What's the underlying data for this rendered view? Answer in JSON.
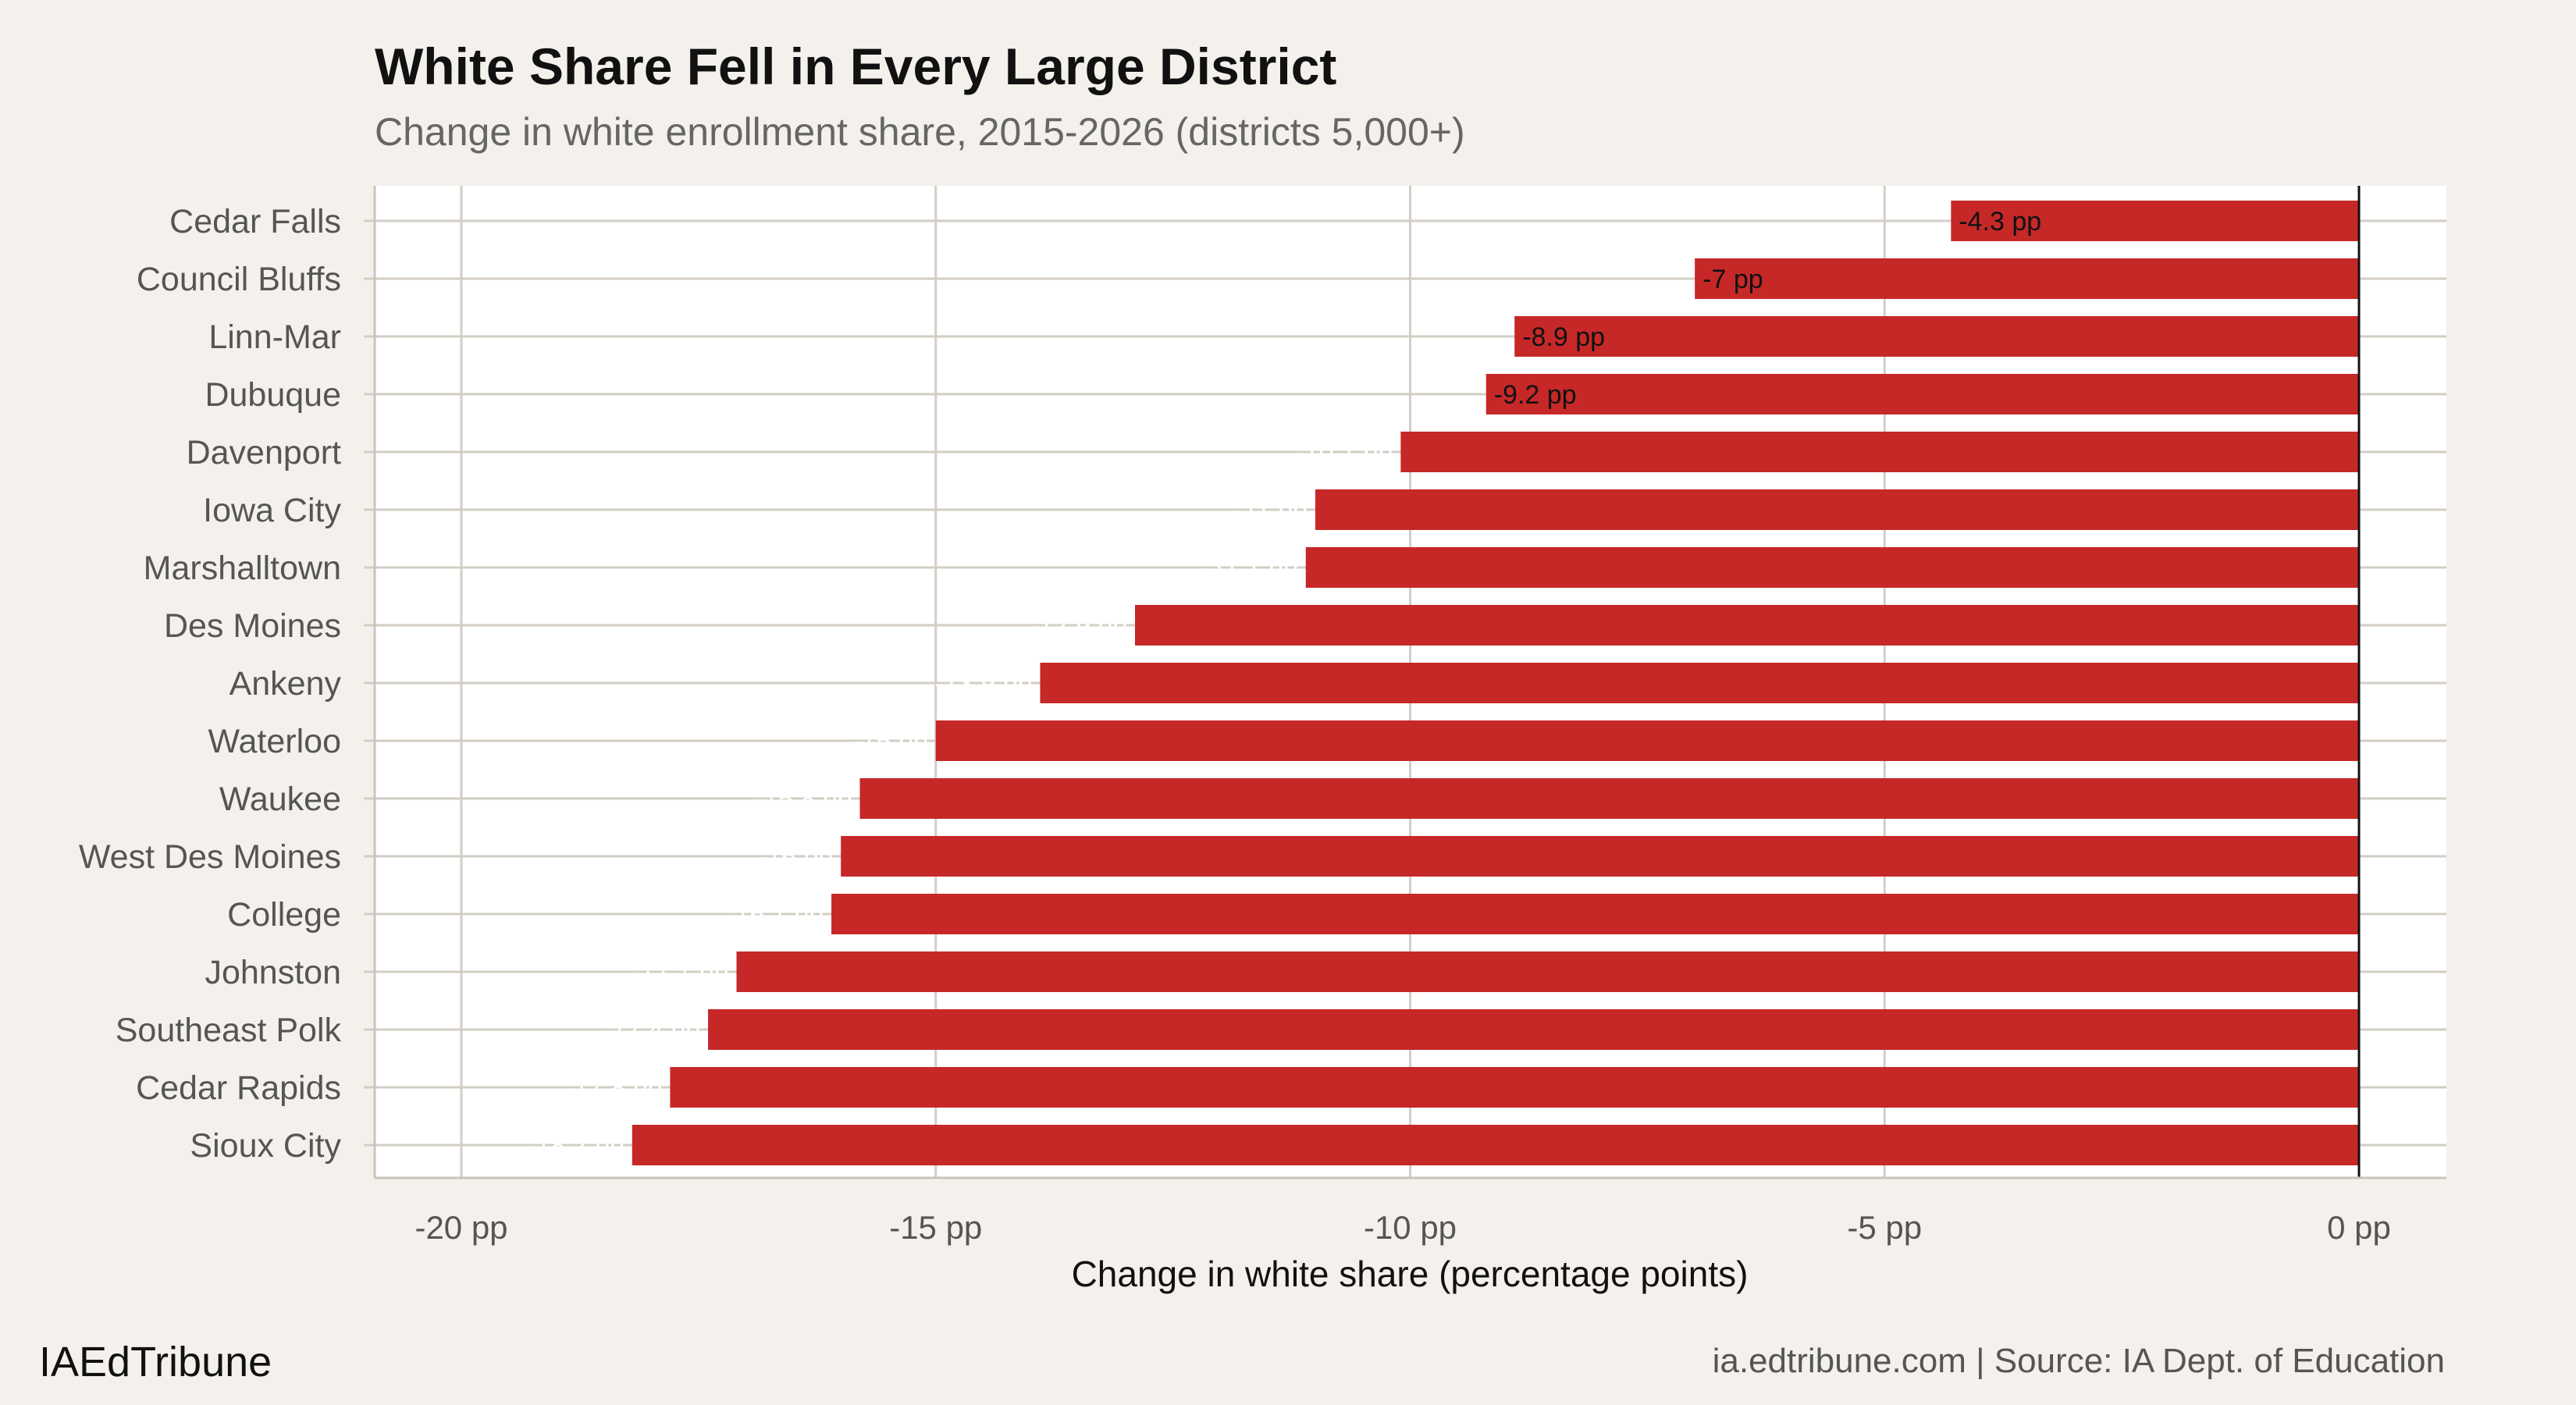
{
  "chart_data": {
    "type": "bar",
    "orientation": "horizontal",
    "title": "White Share Fell in Every Large District",
    "subtitle": "Change in white enrollment share, 2015-2026 (districts 5,000+)",
    "xlabel": "Change in white share (percentage points)",
    "ylabel": "",
    "xlim": [
      -21,
      1
    ],
    "x_ticks": [
      -20,
      -15,
      -10,
      -5,
      0
    ],
    "x_tick_labels": [
      "-20 pp",
      "-15 pp",
      "-10 pp",
      "-5 pp",
      "0 pp"
    ],
    "grid": true,
    "bar_color": "#c62828",
    "categories": [
      "Cedar Falls",
      "Council Bluffs",
      "Linn-Mar",
      "Dubuque",
      "Davenport",
      "Iowa City",
      "Marshalltown",
      "Des Moines",
      "Ankeny",
      "Waterloo",
      "Waukee",
      "West Des Moines",
      "College",
      "Johnston",
      "Southeast Polk",
      "Cedar Rapids",
      "Sioux City"
    ],
    "values": [
      -4.3,
      -7,
      -8.9,
      -9.2,
      -10.1,
      -11.0,
      -11.1,
      -12.9,
      -13.9,
      -15.0,
      -15.8,
      -16.0,
      -16.1,
      -17.1,
      -17.4,
      -17.8,
      -18.2
    ],
    "data_labels": [
      "-4.3 pp",
      "-7 pp",
      "-8.9 pp",
      "-9.2 pp",
      "-10.1 pp",
      "-11 pp",
      "-11.1 pp",
      "-12.9 pp",
      "-13.9 pp",
      "-15 pp",
      "-15.8 pp",
      "-16 pp",
      "-16.1 pp",
      "-17.1 pp",
      "-17.4 pp",
      "-17.8 pp",
      "-18.2 pp"
    ]
  },
  "footer": {
    "brand": "IAEdTribune",
    "source": "ia.edtribune.com | Source: IA Dept. of Education"
  },
  "colors": {
    "background": "#f4f1ec",
    "panel": "#ffffff",
    "grid": "#d3cec5",
    "bar": "#c62828"
  }
}
